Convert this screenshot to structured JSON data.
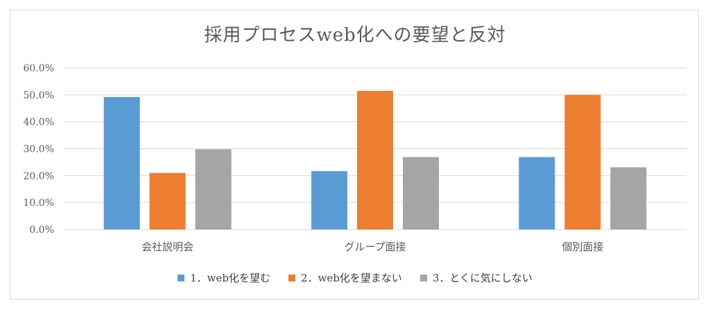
{
  "chart_data": {
    "type": "bar",
    "title": "採用プロセスweb化への要望と反対",
    "categories": [
      "会社説明会",
      "グループ面接",
      "個別面接"
    ],
    "series": [
      {
        "name": "1．web化を望む",
        "color": "#5b9bd5",
        "values": [
          49.2,
          21.7,
          26.9
        ]
      },
      {
        "name": "2．web化を望まない",
        "color": "#ed7d31",
        "values": [
          21.0,
          51.5,
          50.0
        ]
      },
      {
        "name": "3．とくに気にしない",
        "color": "#a5a5a5",
        "values": [
          29.8,
          26.9,
          23.1
        ]
      }
    ],
    "ylim": [
      0,
      60
    ],
    "yticks": [
      "0.0%",
      "10.0%",
      "20.0%",
      "30.0%",
      "40.0%",
      "50.0%",
      "60.0%"
    ],
    "grid": true,
    "legend_position": "bottom",
    "gridline_color": "#d9d9d9",
    "text_color": "#595959"
  }
}
